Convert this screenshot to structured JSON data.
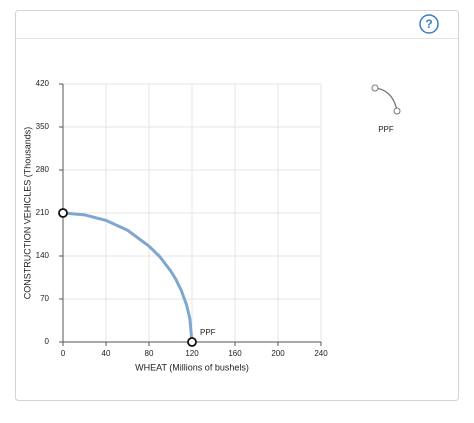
{
  "help_button": "?",
  "chart_data": {
    "type": "line",
    "xlabel": "WHEAT (Millions of bushels)",
    "ylabel": "CONSTRUCTION VEHICLES (Thousands)",
    "x": [
      0,
      20,
      40,
      60,
      80,
      90,
      100,
      105,
      110,
      115,
      118,
      120
    ],
    "series": [
      {
        "name": "PPF",
        "color": "#7fa6d1",
        "values": [
          210,
          207,
          198,
          182,
          156,
          139,
          116,
          102,
          84,
          60,
          38,
          0
        ]
      }
    ],
    "annotations": [
      {
        "text": "PPF",
        "x": 120,
        "y": 0
      }
    ],
    "xlim": [
      0,
      240
    ],
    "xticks": [
      0,
      40,
      80,
      120,
      160,
      200,
      240
    ],
    "ylim": [
      0,
      420
    ],
    "yticks": [
      0,
      70,
      140,
      210,
      280,
      350,
      420
    ],
    "grid": true
  }
}
